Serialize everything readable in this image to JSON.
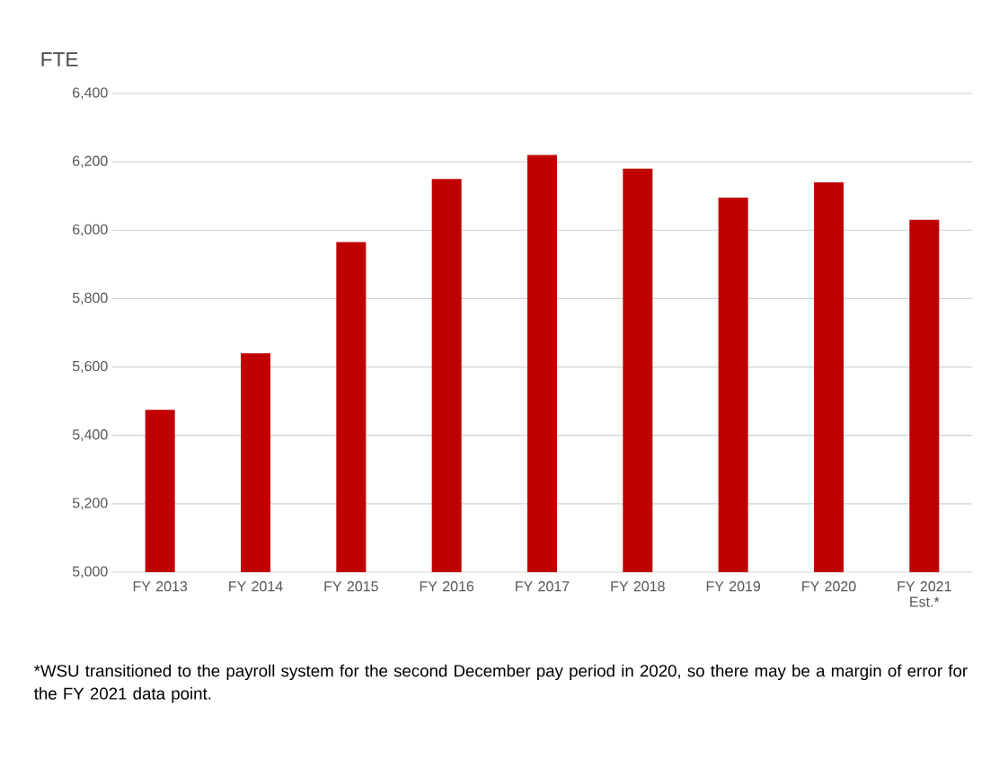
{
  "chart_data": {
    "type": "bar",
    "ylabel": "FTE",
    "categories": [
      "FY 2013",
      "FY 2014",
      "FY 2015",
      "FY 2016",
      "FY 2017",
      "FY 2018",
      "FY 2019",
      "FY 2020",
      "FY 2021 Est.*"
    ],
    "values": [
      5475,
      5640,
      5965,
      6150,
      6220,
      6180,
      6095,
      6140,
      6030
    ],
    "color": "#c00000",
    "ylim": [
      5000,
      6400
    ],
    "yticks": [
      {
        "value": 5000,
        "label": "5,000"
      },
      {
        "value": 5200,
        "label": "5,200"
      },
      {
        "value": 5400,
        "label": "5,400"
      },
      {
        "value": 5600,
        "label": "5,600"
      },
      {
        "value": 5800,
        "label": "5,800"
      },
      {
        "value": 6000,
        "label": "6,000"
      },
      {
        "value": 6200,
        "label": "6,200"
      },
      {
        "value": 6400,
        "label": "6,400"
      }
    ],
    "grid": "y",
    "annotations": [
      "*WSU transitioned to the payroll system for the second December pay period in 2020, so there may be a margin of error for the FY 2021 data point."
    ]
  }
}
